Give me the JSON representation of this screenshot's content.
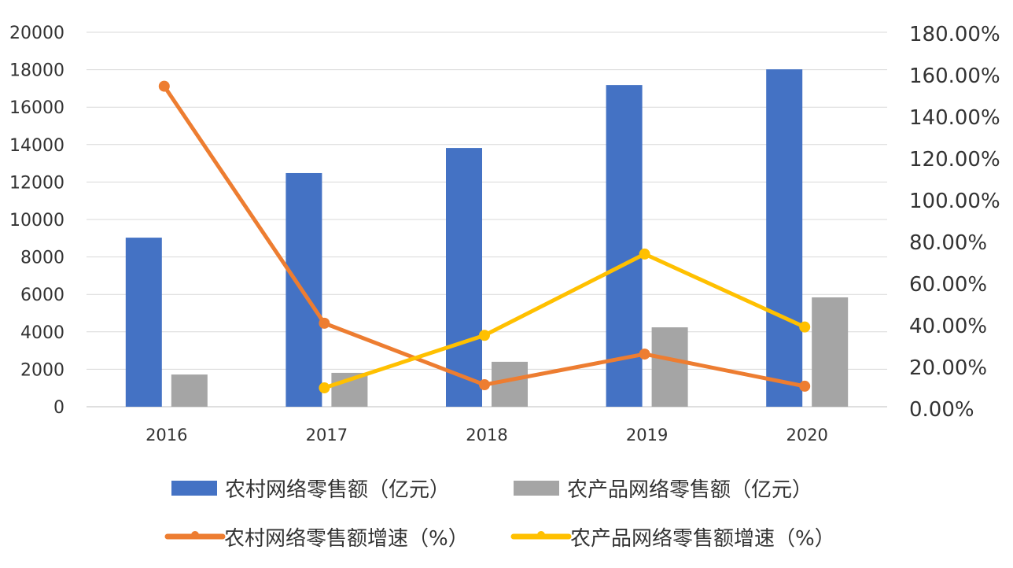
{
  "chart_data": {
    "type": "bar",
    "title": "",
    "categories": [
      "2016",
      "2017",
      "2018",
      "2019",
      "2020"
    ],
    "y_left": {
      "range": [
        0,
        20000
      ],
      "ticks": [
        0,
        2000,
        4000,
        6000,
        8000,
        10000,
        12000,
        14000,
        16000,
        18000,
        20000
      ]
    },
    "y_right": {
      "range": [
        0,
        180
      ],
      "ticks": [
        "0.00%",
        "20.00%",
        "40.00%",
        "60.00%",
        "80.00%",
        "100.00%",
        "120.00%",
        "140.00%",
        "160.00%",
        "180.00%"
      ]
    },
    "grid": true,
    "legend_position": "bottom",
    "bar_series": [
      {
        "name": "农村网络零售额（亿元）",
        "color": "#4472c4",
        "values": [
          9030,
          12480,
          13820,
          17180,
          18020
        ]
      },
      {
        "name": "农产品网络零售额（亿元）",
        "color": "#a5a5a5",
        "values": [
          1720,
          1810,
          2400,
          4240,
          5840
        ]
      }
    ],
    "line_series": [
      {
        "name": "农村网络零售额增速（%）",
        "color": "#ed7d31",
        "axis": "right",
        "values": [
          154.5,
          40.8,
          11.3,
          26.0,
          10.6
        ]
      },
      {
        "name": "农产品网络零售额增速（%）",
        "color": "#ffc000",
        "axis": "right",
        "values": [
          null,
          9.8,
          35.0,
          74.0,
          39.0
        ]
      }
    ]
  }
}
